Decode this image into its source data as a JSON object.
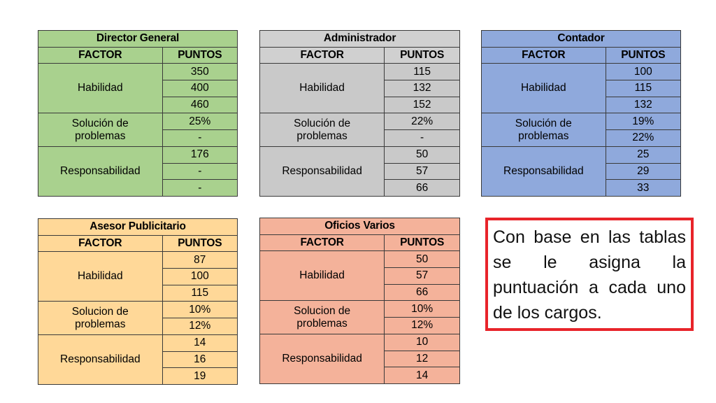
{
  "colors": {
    "green_header": "#a9d18e",
    "green_body": "#a9d18e",
    "gray_header": "#d0d0d0",
    "gray_body": "#c9c9c9",
    "blue_header": "#8fa9dc",
    "blue_body": "#8fa9dc",
    "yellow_header": "#ffd898",
    "yellow_body": "#ffd898",
    "salmon_header": "#f4b29a",
    "salmon_body": "#f4b29a",
    "note_border": "#e8242a"
  },
  "tables": [
    {
      "title": "Director General",
      "col_factor": "FACTOR",
      "col_puntos": "PUNTOS",
      "habilidad": "Habilidad",
      "hab_values": [
        "350",
        "400",
        "460"
      ],
      "solucion": [
        "Solución de",
        "problemas"
      ],
      "sol_values": [
        "25%",
        "-"
      ],
      "responsabilidad": "Responsabilidad",
      "resp_values": [
        "176",
        "-",
        "-"
      ]
    },
    {
      "title": "Administrador",
      "col_factor": "FACTOR",
      "col_puntos": "PUNTOS",
      "habilidad": "Habilidad",
      "hab_values": [
        "115",
        "132",
        "152"
      ],
      "solucion": [
        "Solución de",
        "problemas"
      ],
      "sol_values": [
        "22%",
        "-"
      ],
      "responsabilidad": "Responsabilidad",
      "resp_values": [
        "50",
        "57",
        "66"
      ]
    },
    {
      "title": "Contador",
      "col_factor": "FACTOR",
      "col_puntos": "PUNTOS",
      "habilidad": "Habilidad",
      "hab_values": [
        "100",
        "115",
        "132"
      ],
      "solucion": [
        "Solución de",
        "problemas"
      ],
      "sol_values": [
        "19%",
        "22%"
      ],
      "responsabilidad": "Responsabilidad",
      "resp_values": [
        "25",
        "29",
        "33"
      ]
    },
    {
      "title": "Asesor Publicitario",
      "col_factor": "FACTOR",
      "col_puntos": "PUNTOS",
      "habilidad": "Habilidad",
      "hab_values": [
        "87",
        "100",
        "115"
      ],
      "solucion": [
        "Solucion de",
        "problemas"
      ],
      "sol_values": [
        "10%",
        "12%"
      ],
      "responsabilidad": "Responsabilidad",
      "resp_values": [
        "14",
        "16",
        "19"
      ]
    },
    {
      "title": "Oficios Varios",
      "col_factor": "FACTOR",
      "col_puntos": "PUNTOS",
      "habilidad": "Habilidad",
      "hab_values": [
        "50",
        "57",
        "66"
      ],
      "solucion": [
        "Solucion de",
        "problemas"
      ],
      "sol_values": [
        "10%",
        "12%"
      ],
      "responsabilidad": "Responsabilidad",
      "resp_values": [
        "10",
        "12",
        "14"
      ]
    }
  ],
  "note": {
    "text": "Con base en las tablas se le asigna la puntuación a cada uno de los cargos."
  }
}
